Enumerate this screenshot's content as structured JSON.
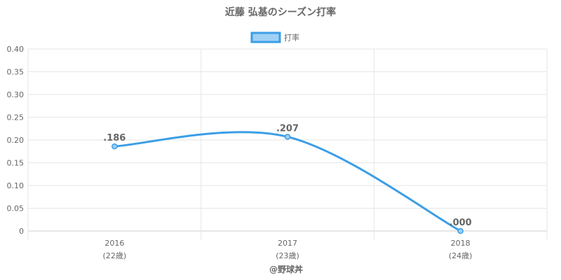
{
  "chart_data": {
    "type": "line",
    "title": "近藤 弘基のシーズン打率",
    "categories": [
      "2016",
      "2017",
      "2018"
    ],
    "category_sublabels": [
      "(22歳)",
      "(23歳)",
      "(24歳)"
    ],
    "series": [
      {
        "name": "打率",
        "values": [
          0.186,
          0.207,
          0.0
        ],
        "data_labels": [
          ".186",
          ".207",
          ".000"
        ],
        "color": "#3b9ee6",
        "fill_color": "#9fd0f5"
      }
    ],
    "ylim": [
      0,
      0.4
    ],
    "yticks": [
      0,
      0.05,
      0.1,
      0.15,
      0.2,
      0.25,
      0.3,
      0.35,
      0.4
    ],
    "ytick_labels": [
      "0",
      "0.05",
      "0.10",
      "0.15",
      "0.20",
      "0.25",
      "0.30",
      "0.35",
      "0.40"
    ],
    "grid": true,
    "legend_position": "top-center"
  },
  "footer": "@野球丼"
}
